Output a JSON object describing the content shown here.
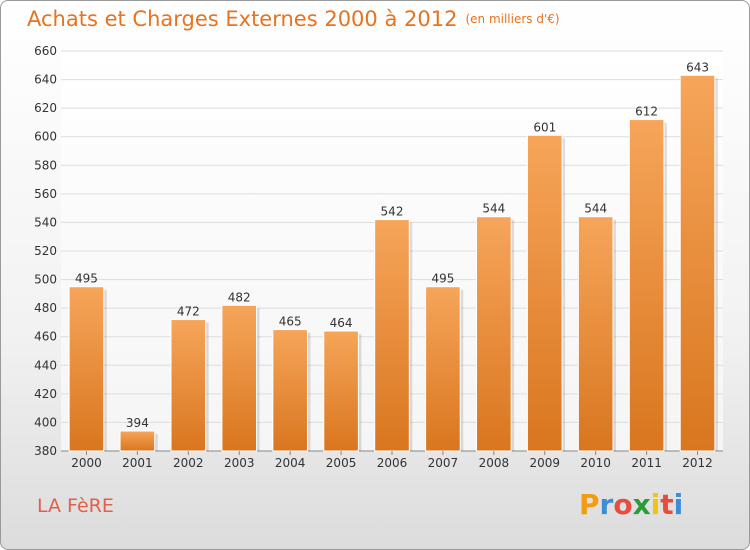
{
  "title": "Achats et Charges Externes 2000 à 2012",
  "subtitle": "(en milliers d'€)",
  "commune": "LA FèRE",
  "logo": {
    "letters": [
      "P",
      "r",
      "o",
      "x",
      "i",
      "t",
      "i"
    ],
    "colors": [
      "#f39c12",
      "#3c8dd6",
      "#e74c3c",
      "#2a9d3a",
      "#f1c40f",
      "#e74c3c",
      "#3c8dd6"
    ]
  },
  "colors": {
    "title": "#e8731e",
    "bar_top": "#f6a55a",
    "bar_bottom": "#d9761f",
    "grid": "#dddddd",
    "axis_text": "#333333"
  },
  "chart_data": {
    "type": "bar",
    "categories": [
      "2000",
      "2001",
      "2002",
      "2003",
      "2004",
      "2005",
      "2006",
      "2007",
      "2008",
      "2009",
      "2010",
      "2011",
      "2012"
    ],
    "values": [
      495,
      394,
      472,
      482,
      465,
      464,
      542,
      495,
      544,
      601,
      544,
      612,
      643
    ],
    "data_labels": [
      "495",
      "394",
      "472",
      "482",
      "465",
      "464",
      "542",
      "495",
      "544",
      "601",
      "544",
      "612",
      "643"
    ],
    "ylim": [
      380,
      660
    ],
    "yticks": [
      380,
      400,
      420,
      440,
      460,
      480,
      500,
      520,
      540,
      560,
      580,
      600,
      620,
      640,
      660
    ],
    "grid": true,
    "xlabel": "",
    "ylabel": ""
  }
}
